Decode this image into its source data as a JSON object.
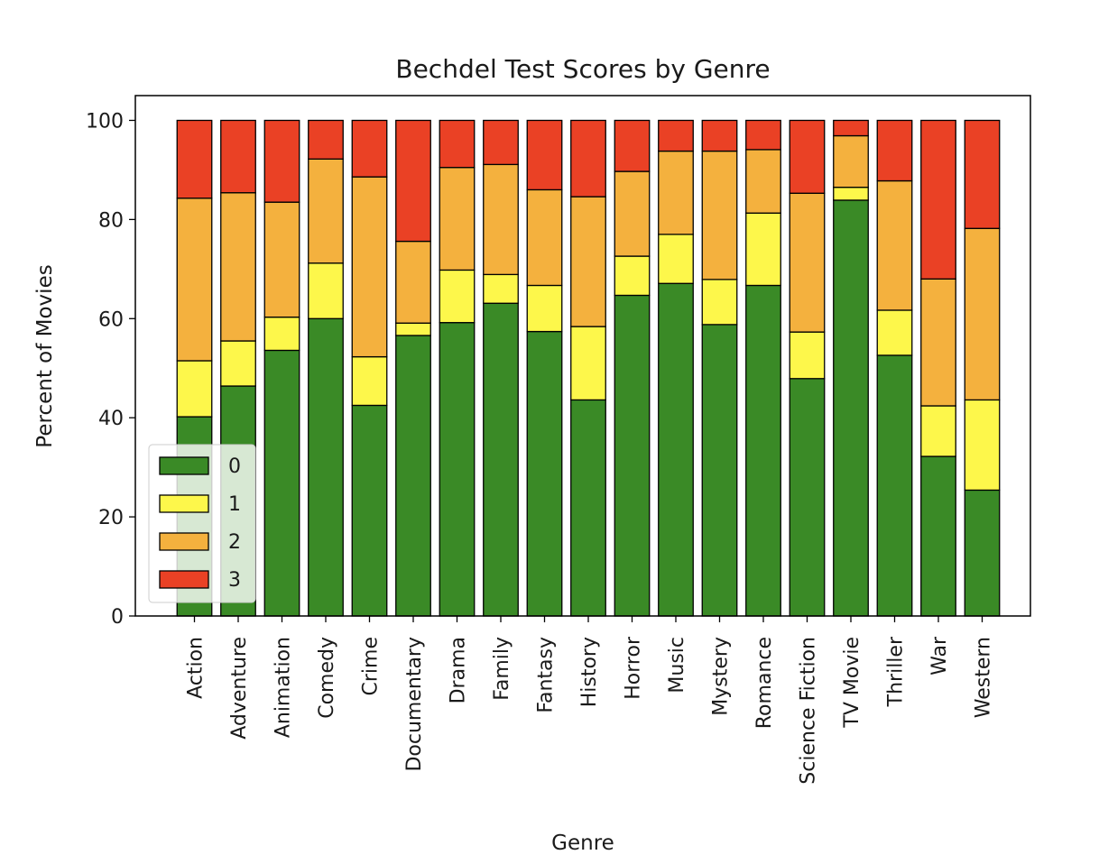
{
  "chart_data": {
    "type": "bar",
    "stacked": true,
    "title": "Bechdel Test Scores by Genre",
    "xlabel": "Genre",
    "ylabel": "Percent of Movies",
    "ylim": [
      0,
      105
    ],
    "yticks": [
      0,
      20,
      40,
      60,
      80,
      100
    ],
    "grid": false,
    "legend_position": "lower-left",
    "categories": [
      "Action",
      "Adventure",
      "Animation",
      "Comedy",
      "Crime",
      "Documentary",
      "Drama",
      "Family",
      "Fantasy",
      "History",
      "Horror",
      "Music",
      "Mystery",
      "Romance",
      "Science Fiction",
      "TV Movie",
      "Thriller",
      "War",
      "Western"
    ],
    "series": [
      {
        "name": "0",
        "color": "#3a8a26",
        "values": [
          40.2,
          46.4,
          53.6,
          60.0,
          42.5,
          56.6,
          59.2,
          63.1,
          57.4,
          43.6,
          64.7,
          67.1,
          58.8,
          66.7,
          47.9,
          83.9,
          52.6,
          32.2,
          25.4
        ]
      },
      {
        "name": "1",
        "color": "#fdf74b",
        "values": [
          11.3,
          9.1,
          6.7,
          11.2,
          9.8,
          2.5,
          10.6,
          5.8,
          9.3,
          14.8,
          7.9,
          9.9,
          9.1,
          14.6,
          9.4,
          2.6,
          9.1,
          10.2,
          18.2
        ]
      },
      {
        "name": "2",
        "color": "#f4b13e",
        "values": [
          32.8,
          29.9,
          23.2,
          21.0,
          36.3,
          16.5,
          20.7,
          22.2,
          19.3,
          26.2,
          17.1,
          16.8,
          25.9,
          12.8,
          28.0,
          10.4,
          26.1,
          25.6,
          34.6
        ]
      },
      {
        "name": "3",
        "color": "#ea4125",
        "values": [
          15.7,
          14.6,
          16.5,
          7.8,
          11.4,
          24.4,
          9.5,
          8.9,
          14.0,
          15.4,
          10.3,
          6.2,
          6.2,
          5.9,
          14.7,
          3.1,
          12.2,
          32.0,
          21.8
        ]
      }
    ]
  }
}
